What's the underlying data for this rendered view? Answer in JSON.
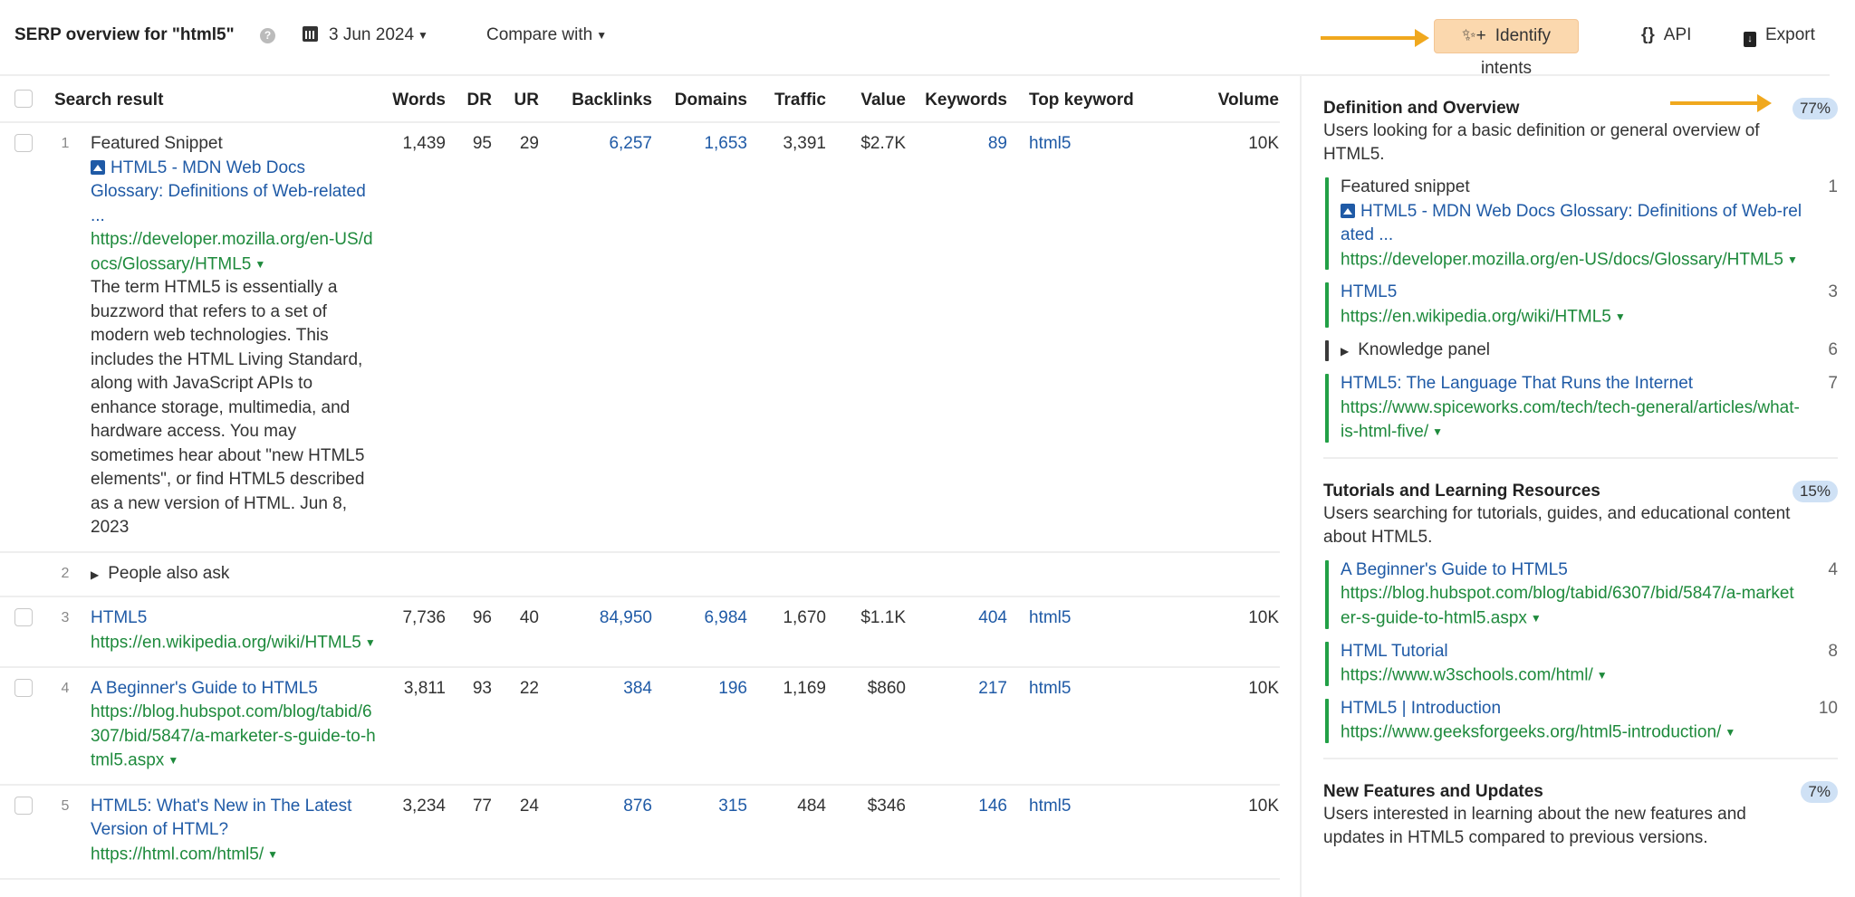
{
  "header": {
    "title": "SERP overview for \"html5\"",
    "help_icon": "question-circle-icon",
    "date": "3 Jun 2024",
    "compare": "Compare with",
    "identify_intents": "Identify intents",
    "api": "API",
    "export": "Export",
    "accent_color": "#f0a81e"
  },
  "table": {
    "columns": [
      "Search result",
      "Words",
      "DR",
      "UR",
      "Backlinks",
      "Domains",
      "Traffic",
      "Value",
      "Keywords",
      "Top keyword",
      "Volume"
    ],
    "rows": [
      {
        "pos": "1",
        "type": "Featured Snippet",
        "title": "HTML5 - MDN Web Docs Glossary: Definitions of Web-related ...",
        "url": "https://developer.mozilla.org/en-US/docs/Glossary/HTML5",
        "snippet": "The term HTML5 is essentially a buzzword that refers to a set of modern web technologies. This includes the HTML Living Standard, along with JavaScript APIs to enhance storage, multimedia, and hardware access. You may sometimes hear about \"new HTML5 elements\", or find HTML5 described as a new version of HTML. Jun 8, 2023",
        "words": "1,439",
        "dr": "95",
        "ur": "29",
        "backlinks": "6,257",
        "domains": "1,653",
        "traffic": "3,391",
        "value": "$2.7K",
        "keywords": "89",
        "top_keyword": "html5",
        "volume": "10K"
      },
      {
        "pos": "2",
        "type": "People also ask"
      },
      {
        "pos": "3",
        "title": "HTML5",
        "url": "https://en.wikipedia.org/wiki/HTML5",
        "words": "7,736",
        "dr": "96",
        "ur": "40",
        "backlinks": "84,950",
        "domains": "6,984",
        "traffic": "1,670",
        "value": "$1.1K",
        "keywords": "404",
        "top_keyword": "html5",
        "volume": "10K"
      },
      {
        "pos": "4",
        "title": "A Beginner's Guide to HTML5",
        "url": "https://blog.hubspot.com/blog/tabid/6307/bid/5847/a-marketer-s-guide-to-html5.aspx",
        "words": "3,811",
        "dr": "93",
        "ur": "22",
        "backlinks": "384",
        "domains": "196",
        "traffic": "1,169",
        "value": "$860",
        "keywords": "217",
        "top_keyword": "html5",
        "volume": "10K"
      },
      {
        "pos": "5",
        "title": "HTML5: What's New in The Latest Version of HTML?",
        "url": "https://html.com/html5/",
        "words": "3,234",
        "dr": "77",
        "ur": "24",
        "backlinks": "876",
        "domains": "315",
        "traffic": "484",
        "value": "$346",
        "keywords": "146",
        "top_keyword": "html5",
        "volume": "10K"
      }
    ]
  },
  "intents": [
    {
      "title": "Definition and Overview",
      "percent": "77%",
      "desc": "Users looking for a basic definition or general overview of HTML5.",
      "items": [
        {
          "label": "Featured snippet",
          "title": "HTML5 - MDN Web Docs Glossary: Definitions of Web-related ...",
          "url": "https://developer.mozilla.org/en-US/docs/Glossary/HTML5",
          "pos": "1"
        },
        {
          "title": "HTML5",
          "url": "https://en.wikipedia.org/wiki/HTML5",
          "pos": "3"
        },
        {
          "panel": "Knowledge panel",
          "pos": "6"
        },
        {
          "title": "HTML5: The Language That Runs the Internet",
          "url": "https://www.spiceworks.com/tech/tech-general/articles/what-is-html-five/",
          "pos": "7"
        }
      ]
    },
    {
      "title": "Tutorials and Learning Resources",
      "percent": "15%",
      "desc": "Users searching for tutorials, guides, and educational content about HTML5.",
      "items": [
        {
          "title": "A Beginner's Guide to HTML5",
          "url": "https://blog.hubspot.com/blog/tabid/6307/bid/5847/a-marketer-s-guide-to-html5.aspx",
          "pos": "4"
        },
        {
          "title": "HTML Tutorial",
          "url": "https://www.w3schools.com/html/",
          "pos": "8"
        },
        {
          "title": "HTML5 | Introduction",
          "url": "https://www.geeksforgeeks.org/html5-introduction/",
          "pos": "10"
        }
      ]
    },
    {
      "title": "New Features and Updates",
      "percent": "7%",
      "desc": "Users interested in learning about the new features and updates in HTML5 compared to previous versions.",
      "items": []
    }
  ]
}
